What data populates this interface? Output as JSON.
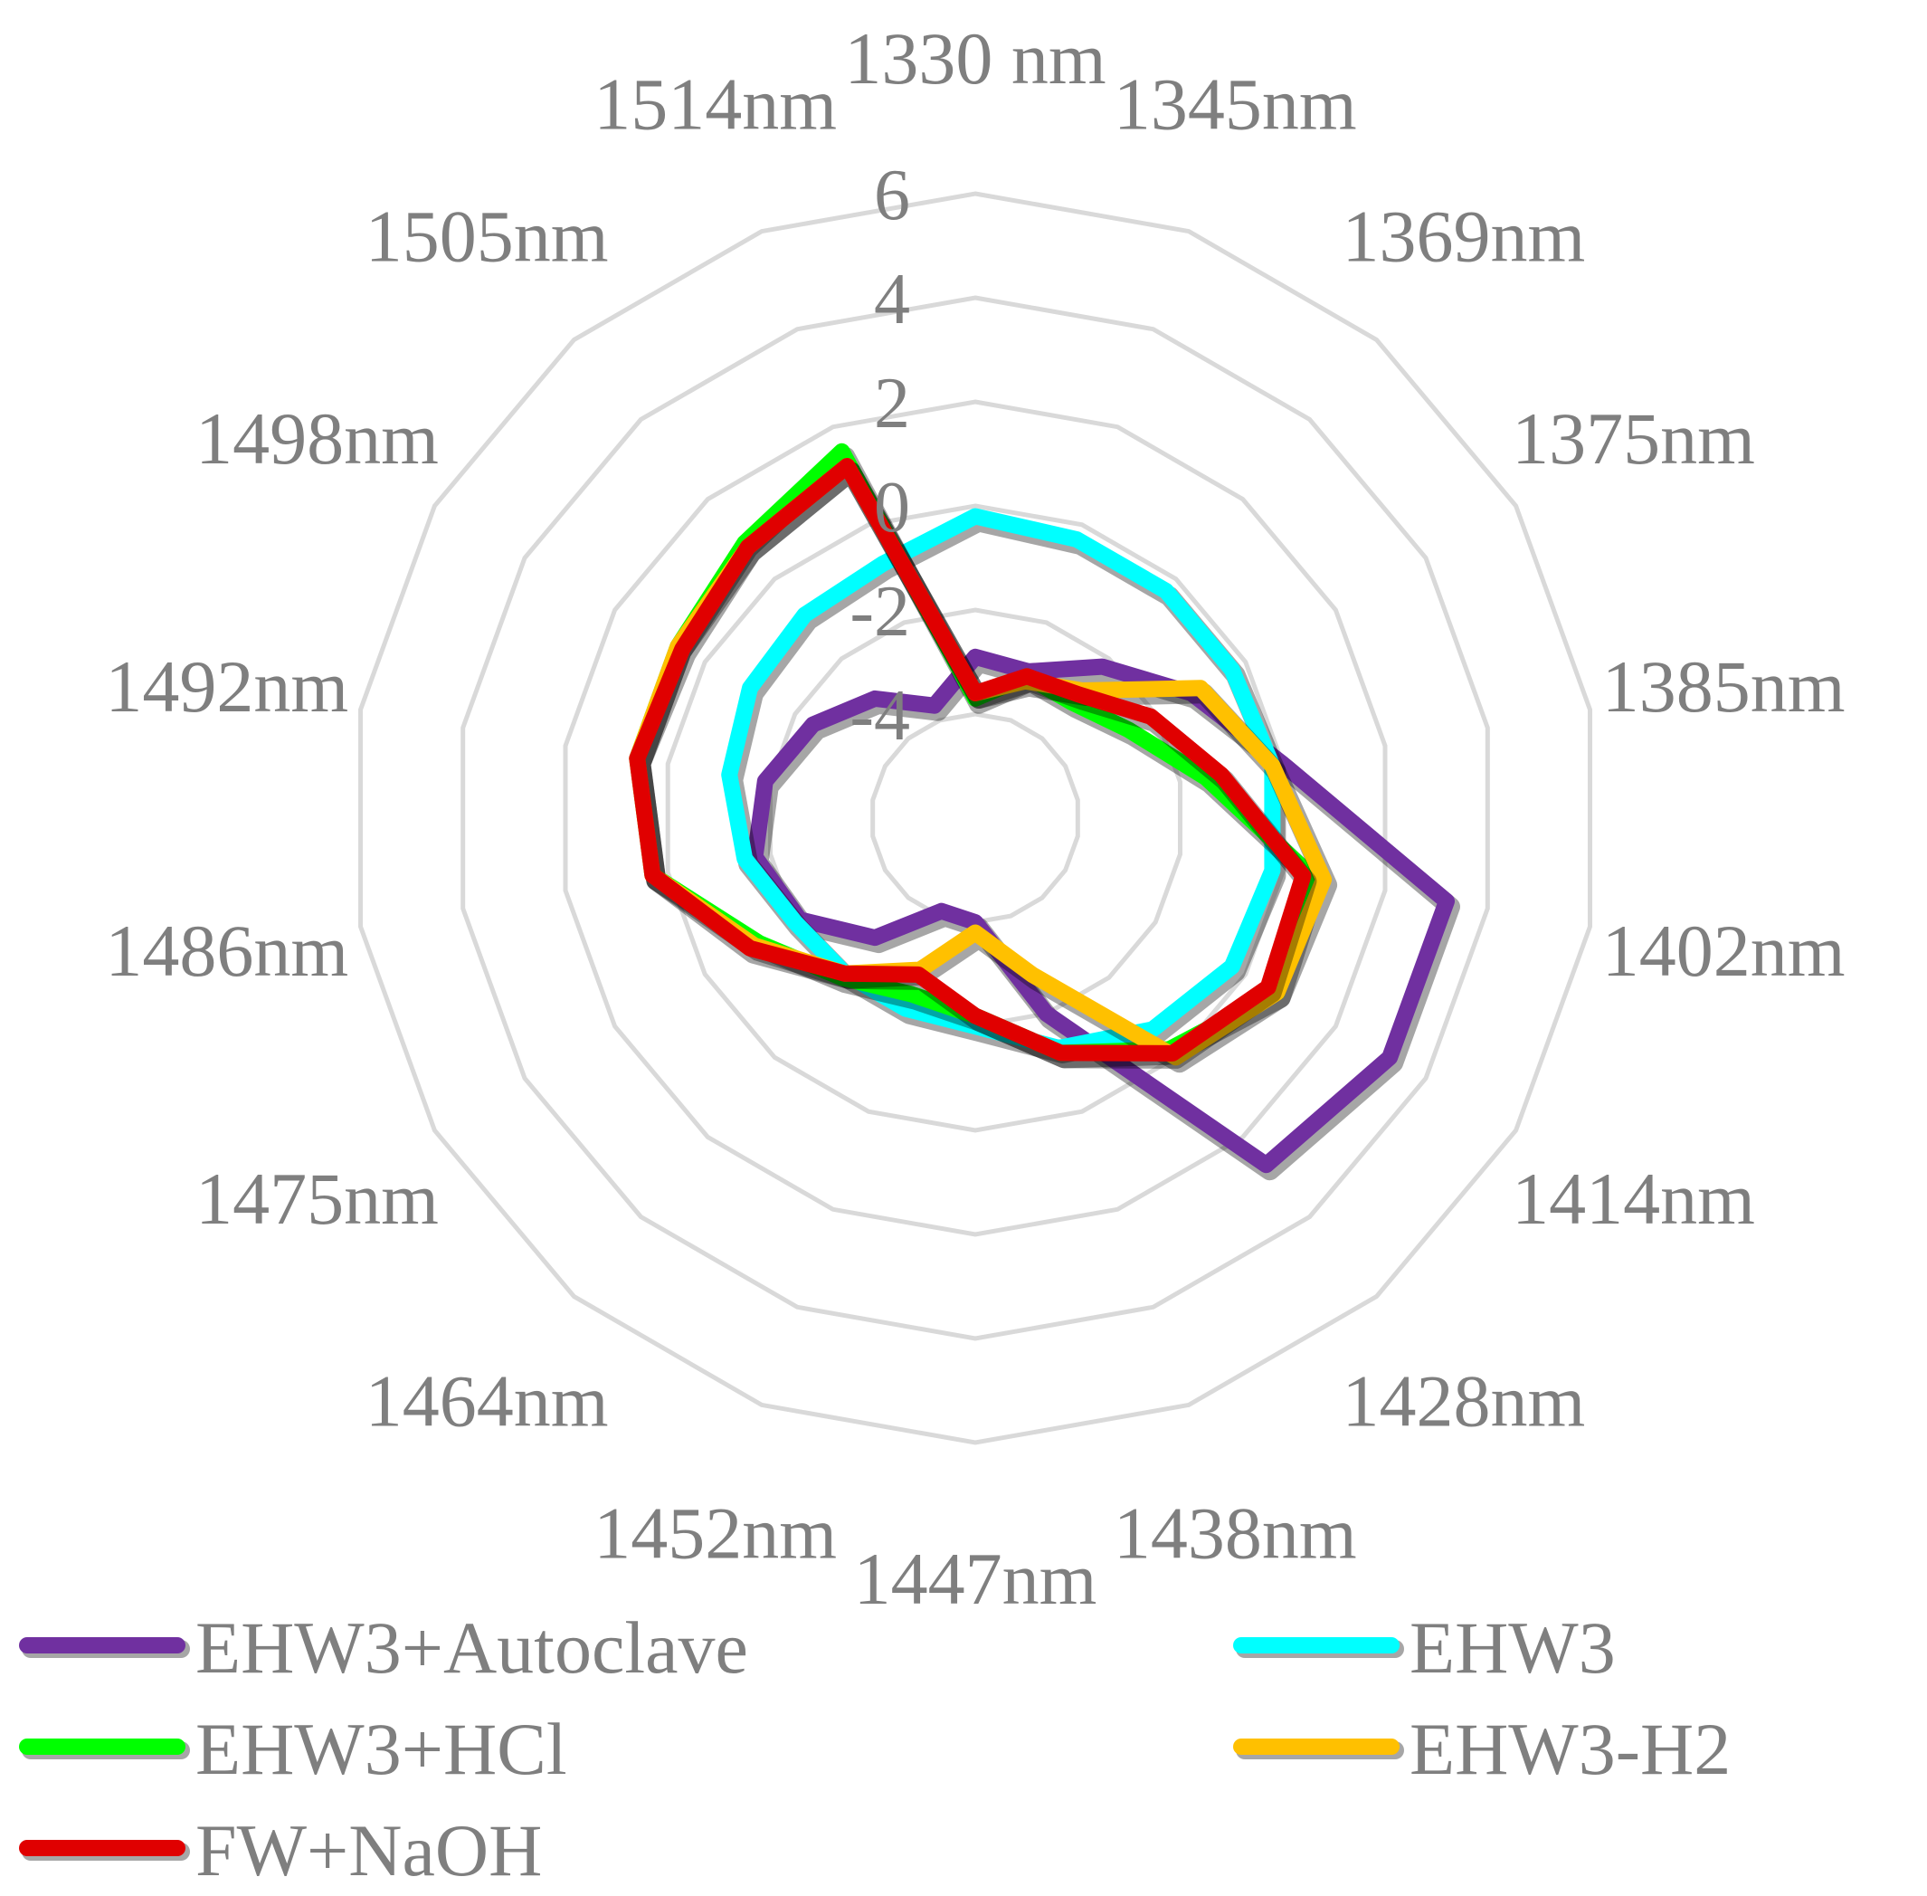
{
  "chart_data": {
    "type": "radar",
    "title": "",
    "categories": [
      "1330 nm",
      "1345nm",
      "1369nm",
      "1375nm",
      "1385nm",
      "1402nm",
      "1414nm",
      "1428nm",
      "1438nm",
      "1447nm",
      "1452nm",
      "1464nm",
      "1475nm",
      "1486nm",
      "1492nm",
      "1498nm",
      "1505nm",
      "1514nm"
    ],
    "r_ticks": [
      "6",
      "4",
      "2",
      "0",
      "-2",
      "-4"
    ],
    "rlim": [
      -6,
      6
    ],
    "grid": true,
    "legend_position": "bottom",
    "series": [
      {
        "name": "EHW3+Autoclave",
        "color": "#7030a0",
        "values": [
          -2.9,
          -3.0,
          -2.2,
          -1.2,
          0.0,
          3.2,
          3.2,
          2.7,
          -2.0,
          -4.0,
          -4.1,
          -3.0,
          -2.1,
          -1.7,
          -1.9,
          -2.4,
          -3.0,
          -3.7
        ]
      },
      {
        "name": "EHW3",
        "color": "#00ffff",
        "values": [
          -0.2,
          -0.3,
          -0.3,
          -0.3,
          -0.2,
          -0.2,
          -0.3,
          -0.7,
          -1.3,
          -2.0,
          -2.1,
          -2.1,
          -2.0,
          -1.5,
          -1.2,
          -1.0,
          -0.9,
          -0.8
        ]
      },
      {
        "name": "EHW3+HCl",
        "color": "#00ff00",
        "values": [
          -3.7,
          -3.1,
          -3.1,
          -2.6,
          -1.5,
          0.6,
          0.7,
          -0.2,
          -1.2,
          -2.2,
          -2.4,
          -2.0,
          -1.2,
          0.3,
          0.6,
          0.6,
          0.9,
          1.5
        ]
      },
      {
        "name": "EHW3-H2",
        "color": "#ffc000",
        "values": [
          -3.6,
          -3.2,
          -2.8,
          -1.0,
          -0.2,
          0.8,
          0.7,
          0.0,
          -2.8,
          -3.8,
          -2.9,
          -2.1,
          -1.1,
          0.3,
          0.6,
          0.6,
          0.8,
          1.2
        ]
      },
      {
        "name": "FW+NaOH",
        "color": "#e00000",
        "values": [
          -3.6,
          -3.1,
          -2.9,
          -2.1,
          -1.2,
          0.4,
          0.5,
          -0.1,
          -1.2,
          -2.2,
          -2.8,
          -2.1,
          -1.0,
          0.3,
          0.6,
          0.5,
          0.8,
          1.2
        ]
      }
    ]
  }
}
